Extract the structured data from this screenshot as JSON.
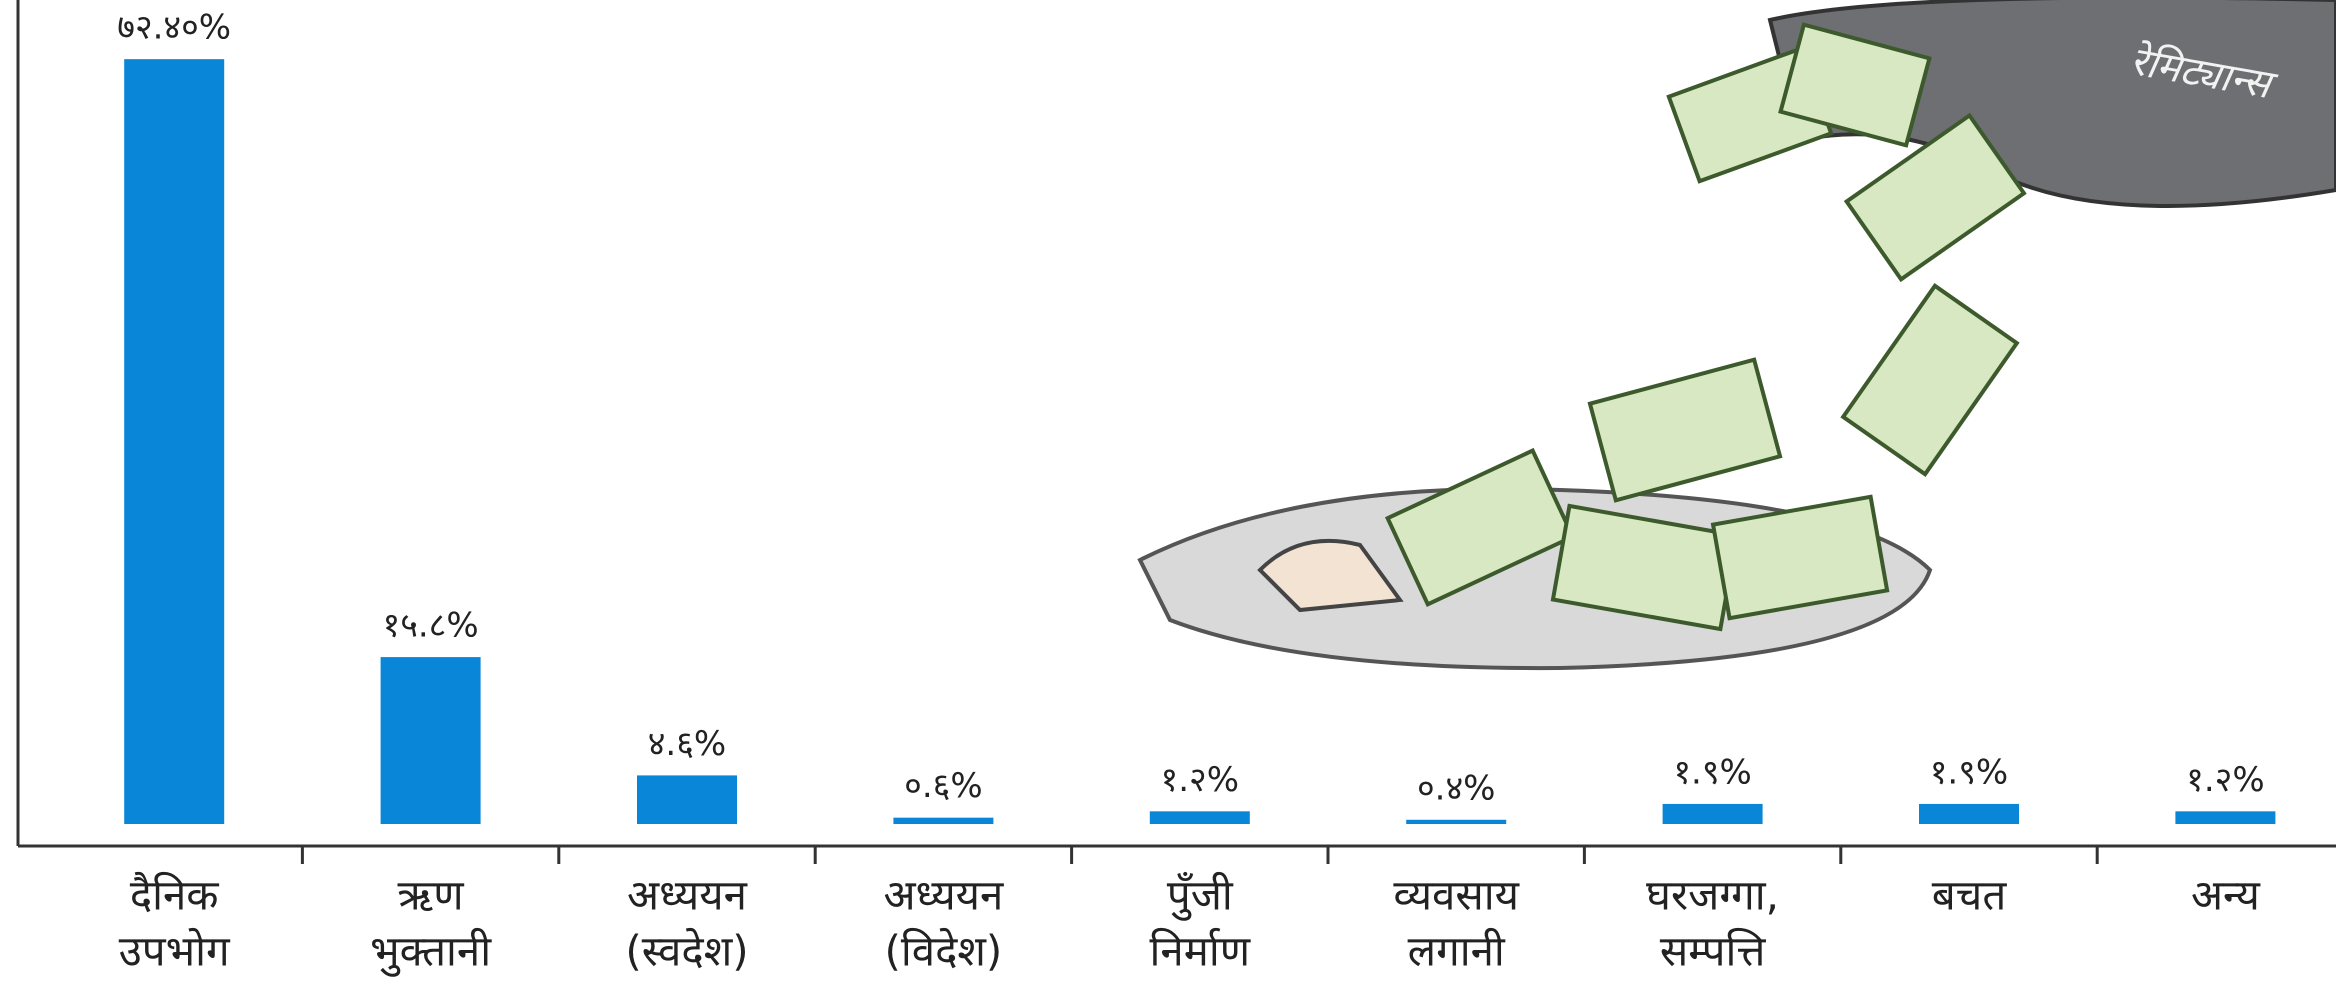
{
  "chart_data": {
    "type": "bar",
    "categories": [
      [
        "दैनिक",
        "उपभोग"
      ],
      [
        "ऋण",
        "भुक्तानी"
      ],
      [
        "अध्ययन",
        "(स्वदेश)"
      ],
      [
        "अध्ययन",
        "(विदेश)"
      ],
      [
        "पुँजी",
        "निर्माण"
      ],
      [
        "व्यवसाय",
        "लगानी"
      ],
      [
        "घरजग्गा,",
        "सम्पत्ति"
      ],
      [
        "बचत"
      ],
      [
        "अन्य"
      ]
    ],
    "values": [
      72.4,
      15.8,
      4.6,
      0.6,
      1.2,
      0.4,
      1.9,
      1.9,
      1.2
    ],
    "value_labels": [
      "७२.४०%",
      "१५.८%",
      "४.६%",
      "०.६%",
      "१.२%",
      "०.४%",
      "१.९%",
      "१.९%",
      "१.२%"
    ],
    "color": "#0a86d8",
    "ylim": [
      0,
      78
    ],
    "annotation": "रेमिट्यान्स"
  }
}
